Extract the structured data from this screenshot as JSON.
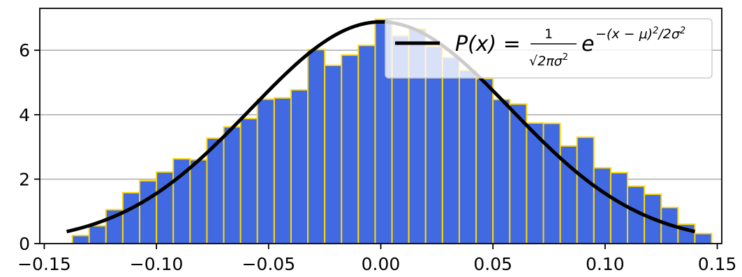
{
  "chart_data": {
    "type": "bar",
    "title": "",
    "xlabel": "",
    "ylabel": "",
    "xlim": [
      -0.152,
      0.152
    ],
    "ylim": [
      0,
      7.3
    ],
    "xticks": [
      -0.15,
      -0.1,
      -0.05,
      0.0,
      0.05,
      0.1,
      0.15
    ],
    "xtick_labels": [
      "−0.15",
      "−0.10",
      "−0.05",
      "0.00",
      "0.05",
      "0.10",
      "0.15"
    ],
    "yticks": [
      0,
      2,
      4,
      6
    ],
    "ytick_labels": [
      "0",
      "2",
      "4",
      "6"
    ],
    "grid": "horizontal",
    "legend_position": "top-right",
    "histogram": {
      "bin_start": -0.1375,
      "bin_width": 0.0075,
      "values": [
        0.25,
        0.55,
        1.05,
        1.58,
        1.95,
        2.22,
        2.63,
        2.6,
        3.27,
        3.62,
        3.88,
        4.48,
        4.52,
        4.77,
        6.02,
        5.53,
        5.85,
        6.15,
        6.96,
        6.45,
        6.67,
        6.12,
        5.78,
        5.38,
        5.12,
        4.47,
        4.33,
        3.74,
        3.73,
        3.03,
        3.3,
        2.35,
        2.2,
        1.78,
        1.53,
        1.12,
        0.6,
        0.31
      ],
      "fill_color": "#4169e1",
      "edge_color": "#ffd700"
    },
    "series": [
      {
        "name": "P(x) = ¹⁄√(2πσ²) e^−(x−μ)²/2σ²",
        "type": "line",
        "mu": 0.0,
        "sigma": 0.058,
        "peak": 6.88,
        "x_range": [
          -0.14,
          0.14
        ],
        "color": "#000000"
      }
    ]
  }
}
